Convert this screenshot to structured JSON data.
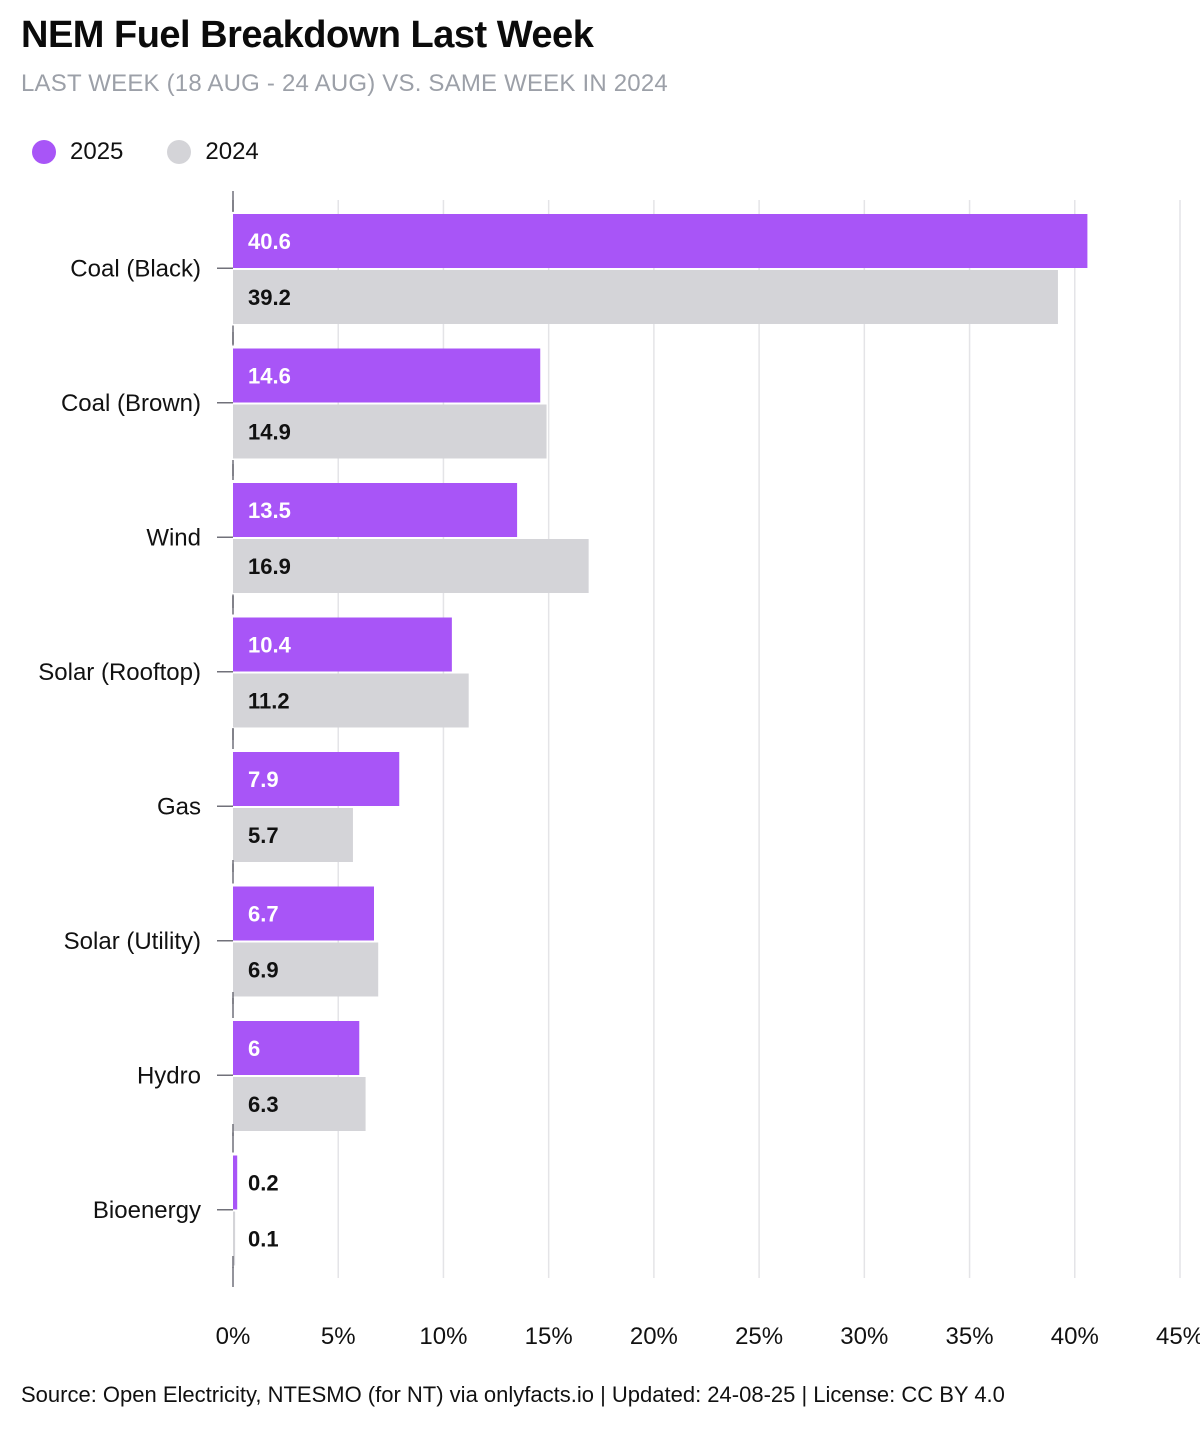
{
  "header": {
    "title": "NEM Fuel Breakdown Last Week",
    "subtitle": "LAST WEEK (18 AUG - 24 AUG) VS. SAME WEEK IN 2024"
  },
  "footer": {
    "source": "Source: Open Electricity, NTESMO (for NT) via onlyfacts.io | Updated: 24-08-25 | License: CC BY 4.0"
  },
  "colors": {
    "series_2025": "#a855f7",
    "series_2024": "#d4d4d8",
    "grid": "#e4e4e7",
    "axis": "#71717a"
  },
  "chart_data": {
    "type": "bar",
    "orientation": "horizontal",
    "title": "NEM Fuel Breakdown Last Week",
    "subtitle": "LAST WEEK (18 AUG - 24 AUG) VS. SAME WEEK IN 2024",
    "categories": [
      "Coal (Black)",
      "Coal (Brown)",
      "Wind",
      "Solar (Rooftop)",
      "Gas",
      "Solar (Utility)",
      "Hydro",
      "Bioenergy"
    ],
    "series": [
      {
        "name": "2025",
        "values": [
          40.6,
          14.6,
          13.5,
          10.4,
          7.9,
          6.7,
          6,
          0.2
        ]
      },
      {
        "name": "2024",
        "values": [
          39.2,
          14.9,
          16.9,
          11.2,
          5.7,
          6.9,
          6.3,
          0.1
        ]
      }
    ],
    "xlim": [
      0,
      45
    ],
    "xticks": [
      "0%",
      "5%",
      "10%",
      "15%",
      "20%",
      "25%",
      "30%",
      "35%",
      "40%",
      "45%"
    ],
    "grid": true,
    "legend": "top-left"
  }
}
